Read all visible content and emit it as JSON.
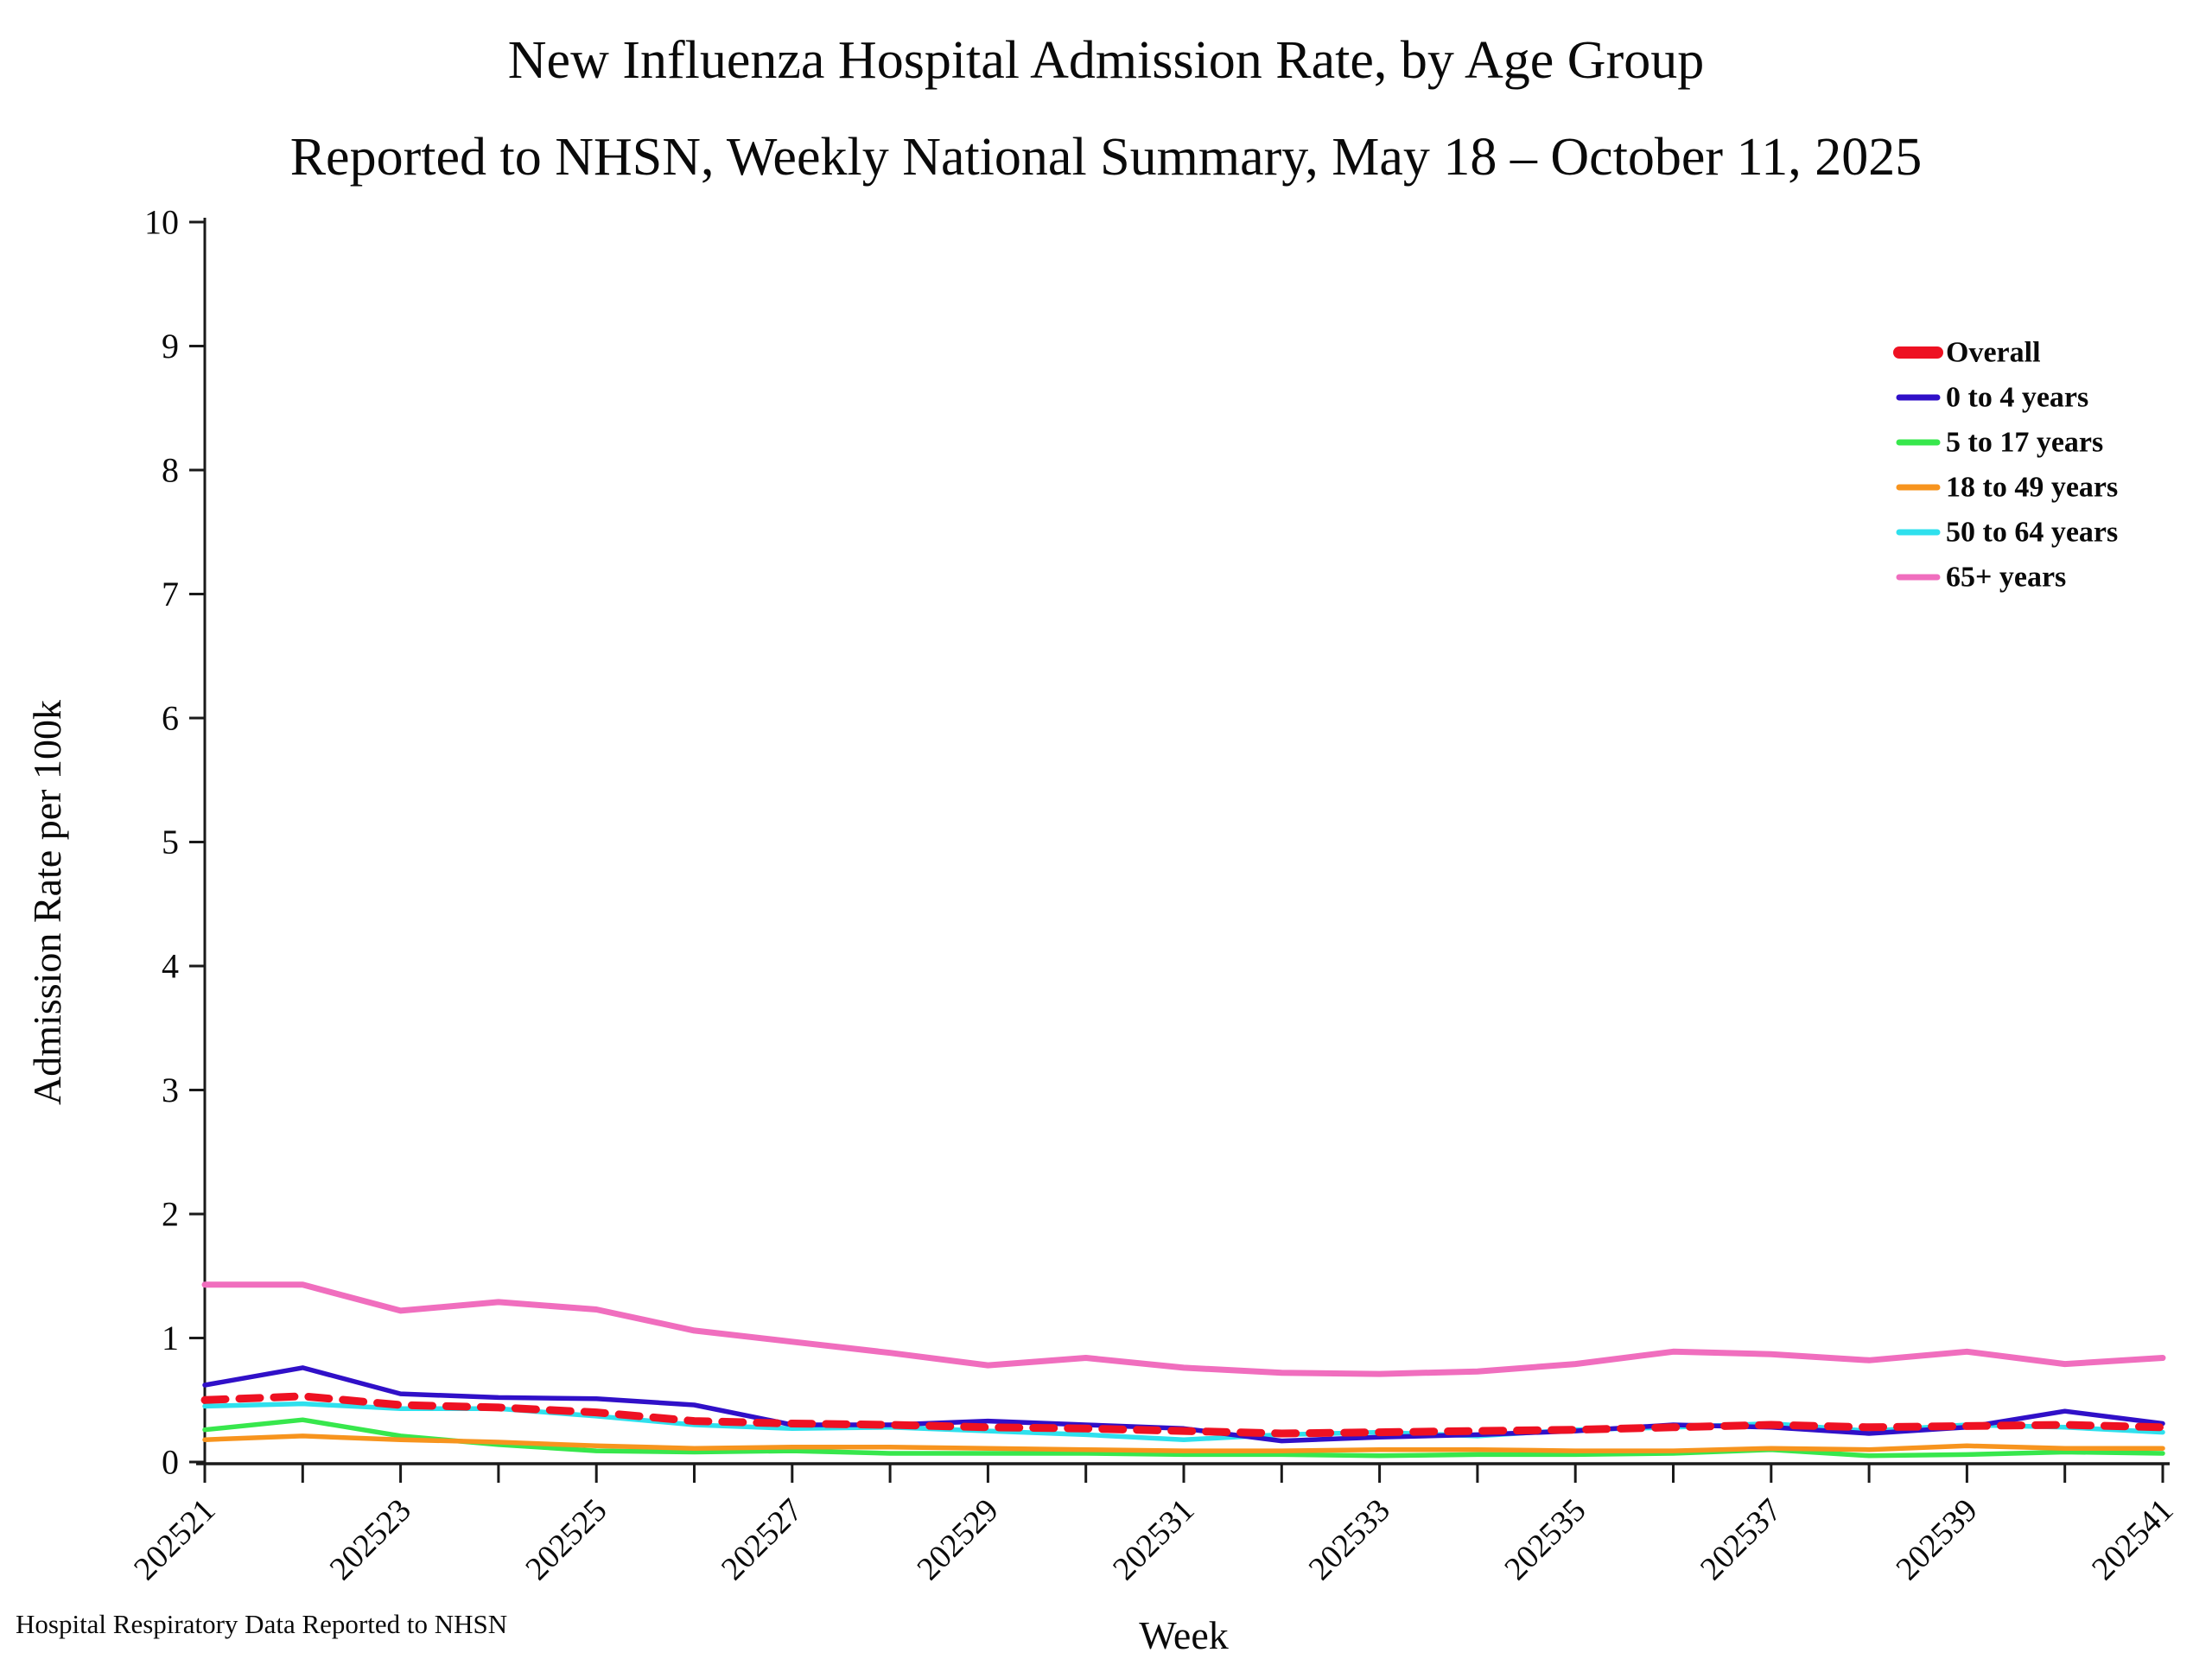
{
  "header": {
    "title_line1": "New Influenza Hospital Admission Rate, by Age Group",
    "title_line2": "Reported to NHSN, Weekly National Summary, May 18 – October 11, 2025"
  },
  "footer": {
    "note": "Hospital Respiratory Data Reported to NHSN"
  },
  "chart_data": {
    "type": "line",
    "title": "New Influenza Hospital Admission Rate, by Age Group",
    "subtitle": "Reported to NHSN, Weekly National Summary, May 18 – October 11, 2025",
    "xlabel": "Week",
    "ylabel": "Admission Rate per 100k",
    "ylim": [
      0,
      10
    ],
    "y_ticks": [
      0,
      1,
      2,
      3,
      4,
      5,
      6,
      7,
      8,
      9,
      10
    ],
    "grid": false,
    "legend_position": "upper right",
    "axis_color": "#1a1a1a",
    "x": [
      "202521",
      "202522",
      "202523",
      "202524",
      "202525",
      "202526",
      "202527",
      "202528",
      "202529",
      "202530",
      "202531",
      "202532",
      "202533",
      "202534",
      "202535",
      "202536",
      "202537",
      "202538",
      "202539",
      "202540",
      "202541"
    ],
    "x_tick_labels_shown": [
      "202521",
      "202523",
      "202525",
      "202527",
      "202529",
      "202531",
      "202533",
      "202535",
      "202537",
      "202539",
      "202541"
    ],
    "series": [
      {
        "name": "Overall",
        "color": "#ee1122",
        "style": "dashed",
        "values": [
          0.5,
          0.53,
          0.46,
          0.44,
          0.4,
          0.33,
          0.31,
          0.3,
          0.28,
          0.27,
          0.25,
          0.23,
          0.24,
          0.25,
          0.26,
          0.28,
          0.3,
          0.28,
          0.29,
          0.3,
          0.28
        ]
      },
      {
        "name": "0 to 4 years",
        "color": "#3010c8",
        "style": "solid",
        "values": [
          0.62,
          0.76,
          0.55,
          0.52,
          0.51,
          0.46,
          0.3,
          0.3,
          0.33,
          0.3,
          0.27,
          0.17,
          0.2,
          0.22,
          0.25,
          0.3,
          0.28,
          0.23,
          0.28,
          0.41,
          0.31
        ]
      },
      {
        "name": "5 to 17 years",
        "color": "#37e74c",
        "style": "solid",
        "values": [
          0.26,
          0.34,
          0.21,
          0.14,
          0.09,
          0.08,
          0.09,
          0.07,
          0.07,
          0.07,
          0.06,
          0.06,
          0.05,
          0.06,
          0.06,
          0.07,
          0.1,
          0.05,
          0.06,
          0.08,
          0.07
        ]
      },
      {
        "name": "18 to 49 years",
        "color": "#f7941e",
        "style": "solid",
        "values": [
          0.18,
          0.21,
          0.18,
          0.16,
          0.13,
          0.11,
          0.12,
          0.12,
          0.11,
          0.1,
          0.09,
          0.09,
          0.1,
          0.1,
          0.09,
          0.09,
          0.11,
          0.1,
          0.13,
          0.11,
          0.11
        ]
      },
      {
        "name": "50 to 64 years",
        "color": "#2fe0ed",
        "style": "solid",
        "values": [
          0.45,
          0.47,
          0.43,
          0.43,
          0.37,
          0.3,
          0.27,
          0.28,
          0.25,
          0.22,
          0.18,
          0.22,
          0.24,
          0.21,
          0.26,
          0.28,
          0.31,
          0.25,
          0.3,
          0.28,
          0.24
        ]
      },
      {
        "name": "65+ years",
        "color": "#f06ebe",
        "style": "solid",
        "values": [
          1.43,
          1.43,
          1.22,
          1.29,
          1.23,
          1.06,
          0.97,
          0.88,
          0.78,
          0.84,
          0.76,
          0.72,
          0.71,
          0.73,
          0.79,
          0.89,
          0.87,
          0.82,
          0.89,
          0.79,
          0.84
        ]
      }
    ]
  }
}
